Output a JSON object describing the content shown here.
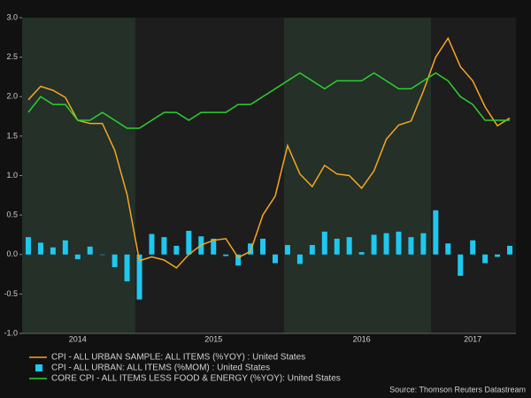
{
  "chart_data": {
    "type": "combo",
    "categories": [
      null,
      null,
      null,
      null,
      "2014",
      null,
      null,
      null,
      null,
      null,
      null,
      null,
      null,
      null,
      null,
      "2015",
      null,
      null,
      null,
      null,
      null,
      null,
      null,
      null,
      null,
      null,
      null,
      "2016",
      null,
      null,
      null,
      null,
      null,
      null,
      null,
      null,
      "2017",
      null,
      null,
      null
    ],
    "series": [
      {
        "name": "CPI - ALL URBAN SAMPLE: ALL ITEMS (%YOY) : United States",
        "type": "line",
        "color": "#f5a623",
        "values": [
          1.96,
          2.13,
          2.08,
          1.99,
          1.7,
          1.66,
          1.66,
          1.32,
          0.76,
          -0.08,
          -0.03,
          -0.07,
          -0.17,
          0.0,
          0.12,
          0.18,
          0.2,
          -0.04,
          0.04,
          0.5,
          0.74,
          1.38,
          1.02,
          0.86,
          1.13,
          1.02,
          1.0,
          0.84,
          1.06,
          1.46,
          1.64,
          1.69,
          2.07,
          2.5,
          2.74,
          2.38,
          2.2,
          1.87,
          1.63,
          1.73
        ]
      },
      {
        "name": "CPI - ALL URBAN: ALL ITEMS (%MOM) : United States",
        "type": "bar",
        "color": "#1ec8f0",
        "values": [
          0.22,
          0.15,
          0.09,
          0.18,
          -0.06,
          0.1,
          0.0,
          -0.16,
          -0.34,
          -0.57,
          0.26,
          0.22,
          0.11,
          0.3,
          0.23,
          0.2,
          -0.02,
          -0.14,
          0.14,
          0.2,
          -0.11,
          0.12,
          -0.12,
          0.12,
          0.29,
          0.2,
          0.22,
          0.03,
          0.25,
          0.27,
          0.29,
          0.22,
          0.27,
          0.56,
          0.14,
          -0.27,
          0.18,
          -0.11,
          -0.03,
          0.11
        ]
      },
      {
        "name": "CORE CPI - ALL ITEMS LESS FOOD & ENERGY (%YOY): United States",
        "type": "line",
        "color": "#2ed12e",
        "values": [
          1.8,
          2.0,
          1.9,
          1.9,
          1.7,
          1.7,
          1.8,
          1.7,
          1.6,
          1.6,
          1.7,
          1.8,
          1.8,
          1.7,
          1.8,
          1.8,
          1.8,
          1.9,
          1.9,
          2.0,
          2.1,
          2.2,
          2.3,
          2.2,
          2.1,
          2.2,
          2.2,
          2.2,
          2.3,
          2.2,
          2.1,
          2.1,
          2.2,
          2.3,
          2.2,
          2.0,
          1.9,
          1.7,
          1.7,
          1.7
        ]
      }
    ],
    "ylim": [
      -1.0,
      3.0
    ],
    "yticks": [
      {
        "value": -1.0,
        "label": "-1.0"
      },
      -0.5,
      {
        "value": 0.0,
        "label": "0.0"
      },
      0.5,
      {
        "value": 1.0,
        "label": "1.0"
      },
      1.5,
      {
        "value": 2.0,
        "label": "2.0"
      },
      2.5,
      {
        "value": 3.0,
        "label": "3.0"
      }
    ],
    "source": "Source: Thomson Reuters Datastream"
  }
}
